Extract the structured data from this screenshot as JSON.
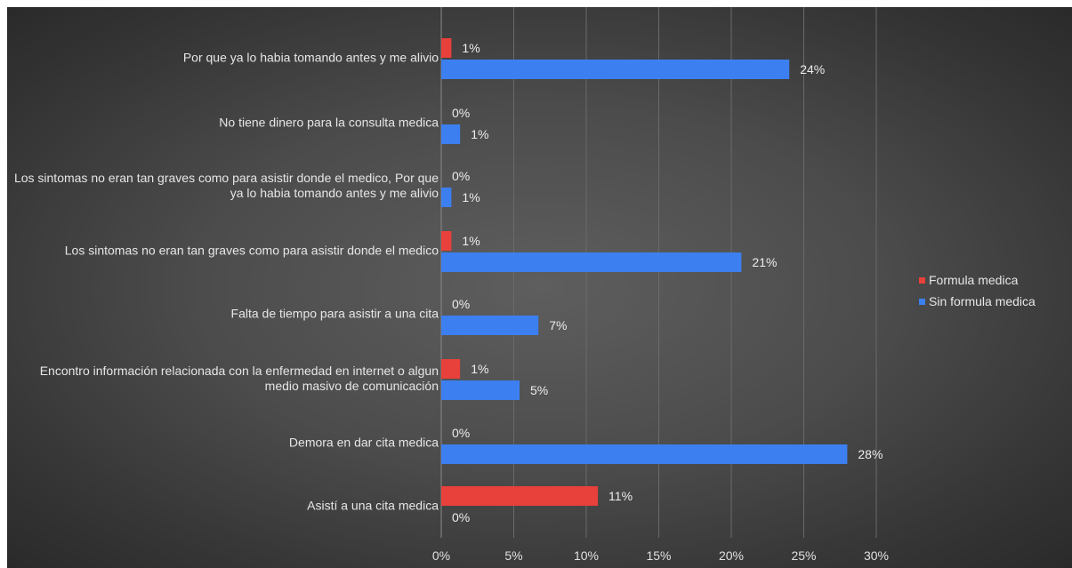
{
  "chart_data": {
    "type": "bar",
    "orientation": "horizontal",
    "categories": [
      "Por que ya lo habia tomando antes y  me alivio",
      "No tiene dinero para la consulta medica",
      "Los sintomas no eran tan graves como para asistir donde el medico, Por que ya lo habia tomando antes y  me alivio",
      "Los sintomas no eran tan graves como para asistir donde el medico",
      "Falta de tiempo para asistir a una cita",
      "Encontro información relacionada con la enfermedad en internet o algun medio masivo de comunicación",
      "Demora en dar cita medica",
      "Asistí a una  cita medica"
    ],
    "series": [
      {
        "name": "Formula medica",
        "color": "#e8403a",
        "values": [
          0.7,
          0,
          0,
          0.7,
          0,
          1.3,
          0,
          10.8
        ],
        "labels": [
          "1%",
          "0%",
          "0%",
          "1%",
          "0%",
          "1%",
          "0%",
          "11%"
        ]
      },
      {
        "name": "Sin formula medica",
        "color": "#3c7ff0",
        "values": [
          24.0,
          1.3,
          0.7,
          20.7,
          6.7,
          5.4,
          28.0,
          0
        ],
        "labels": [
          "24%",
          "1%",
          "1%",
          "21%",
          "7%",
          "5%",
          "28%",
          "0%"
        ]
      }
    ],
    "x_ticks": [
      "0%",
      "5%",
      "10%",
      "15%",
      "20%",
      "25%",
      "30%"
    ],
    "xlim": [
      0,
      30
    ],
    "grid": true,
    "legend_position": "right"
  }
}
